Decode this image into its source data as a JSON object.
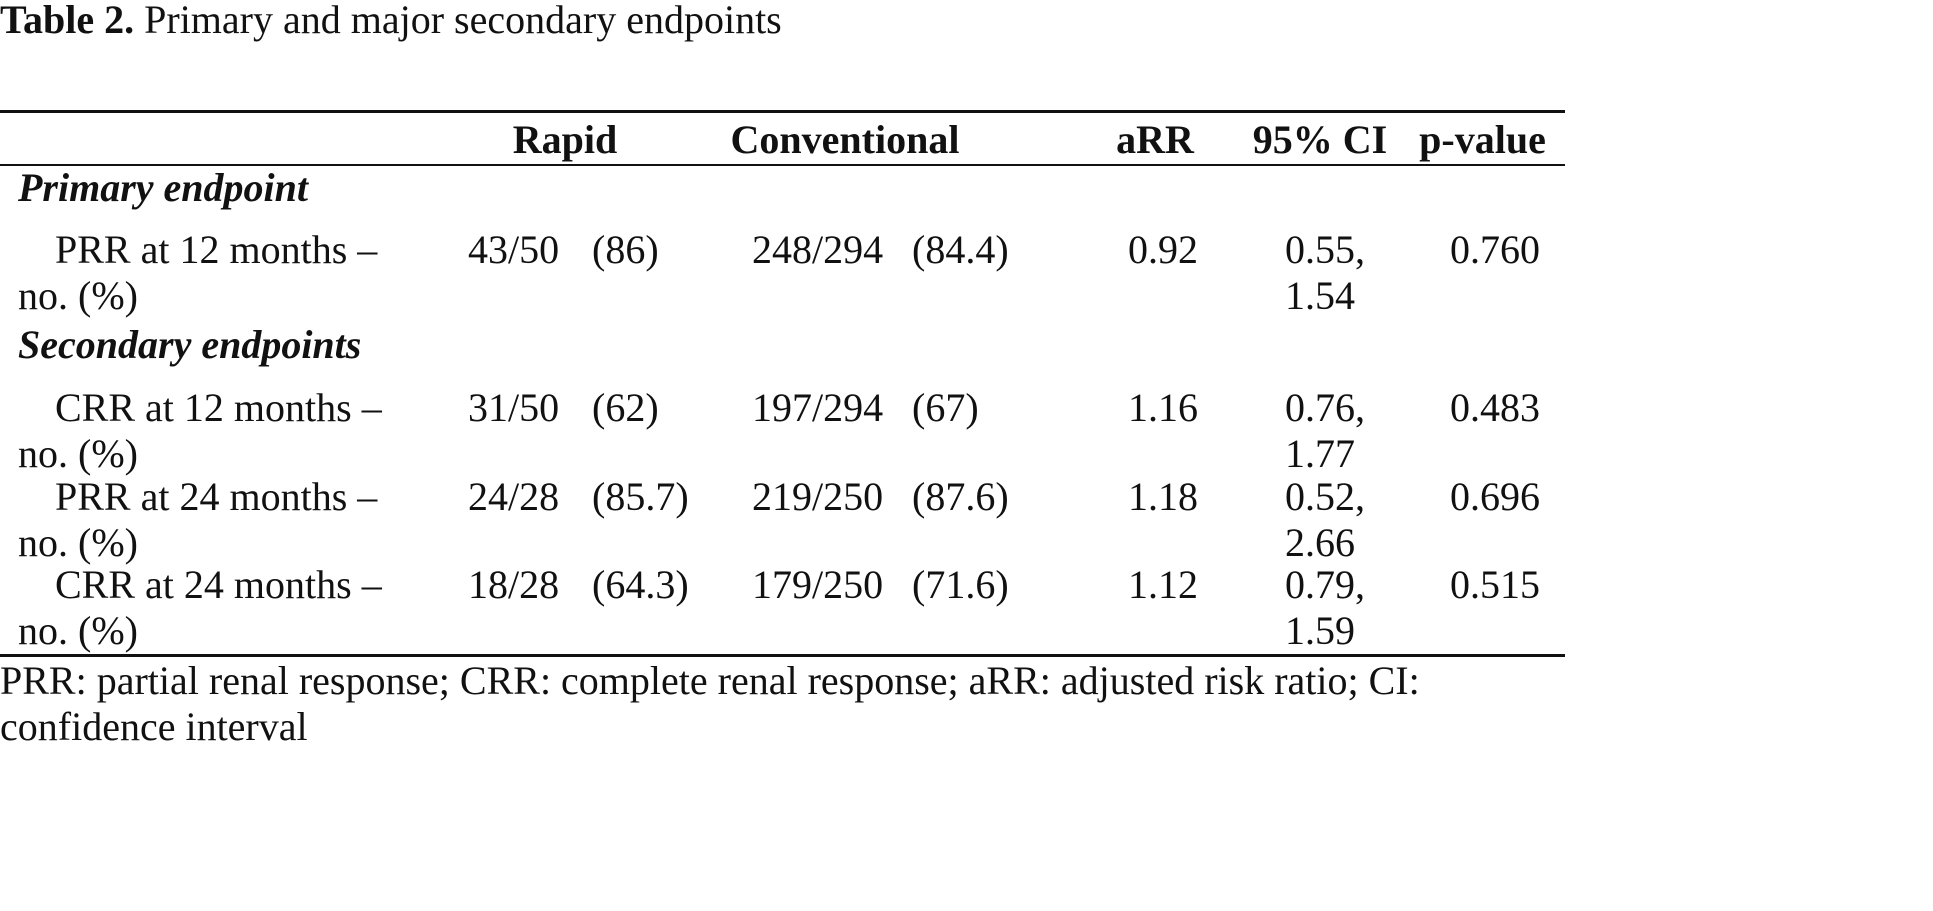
{
  "title": {
    "label": "Table 2.",
    "text": "Primary and major secondary endpoints"
  },
  "table": {
    "header": [
      "Rapid",
      "Conventional",
      "aRR",
      "95% CI",
      "p-value"
    ],
    "sections": [
      {
        "title": "Primary endpoint",
        "rows": [
          [
            "PRR at 12 months – no. (%)",
            "43/50",
            "(86)",
            "248/294",
            "(84.4)",
            "0.92",
            "0.55, 1.54",
            "0.760"
          ]
        ]
      },
      {
        "title": "Secondary endpoints",
        "rows": [
          [
            "CRR at 12 months – no. (%)",
            "31/50",
            "(62)",
            "197/294",
            "(67)",
            "1.16",
            "0.76, 1.77",
            "0.483"
          ],
          [
            "PRR at 24 months – no. (%)",
            "24/28",
            "(85.7)",
            "219/250",
            "(87.6)",
            "1.18",
            "0.52, 2.66",
            "0.696"
          ],
          [
            "CRR at 24 months – no. (%)",
            "18/28",
            "(64.3)",
            "179/250",
            "(71.6)",
            "1.12",
            "0.79, 1.59",
            "0.515"
          ]
        ]
      }
    ]
  },
  "footnote": "PRR: partial renal response; CRR: complete renal response; aRR: adjusted risk ratio; CI: confidence interval"
}
